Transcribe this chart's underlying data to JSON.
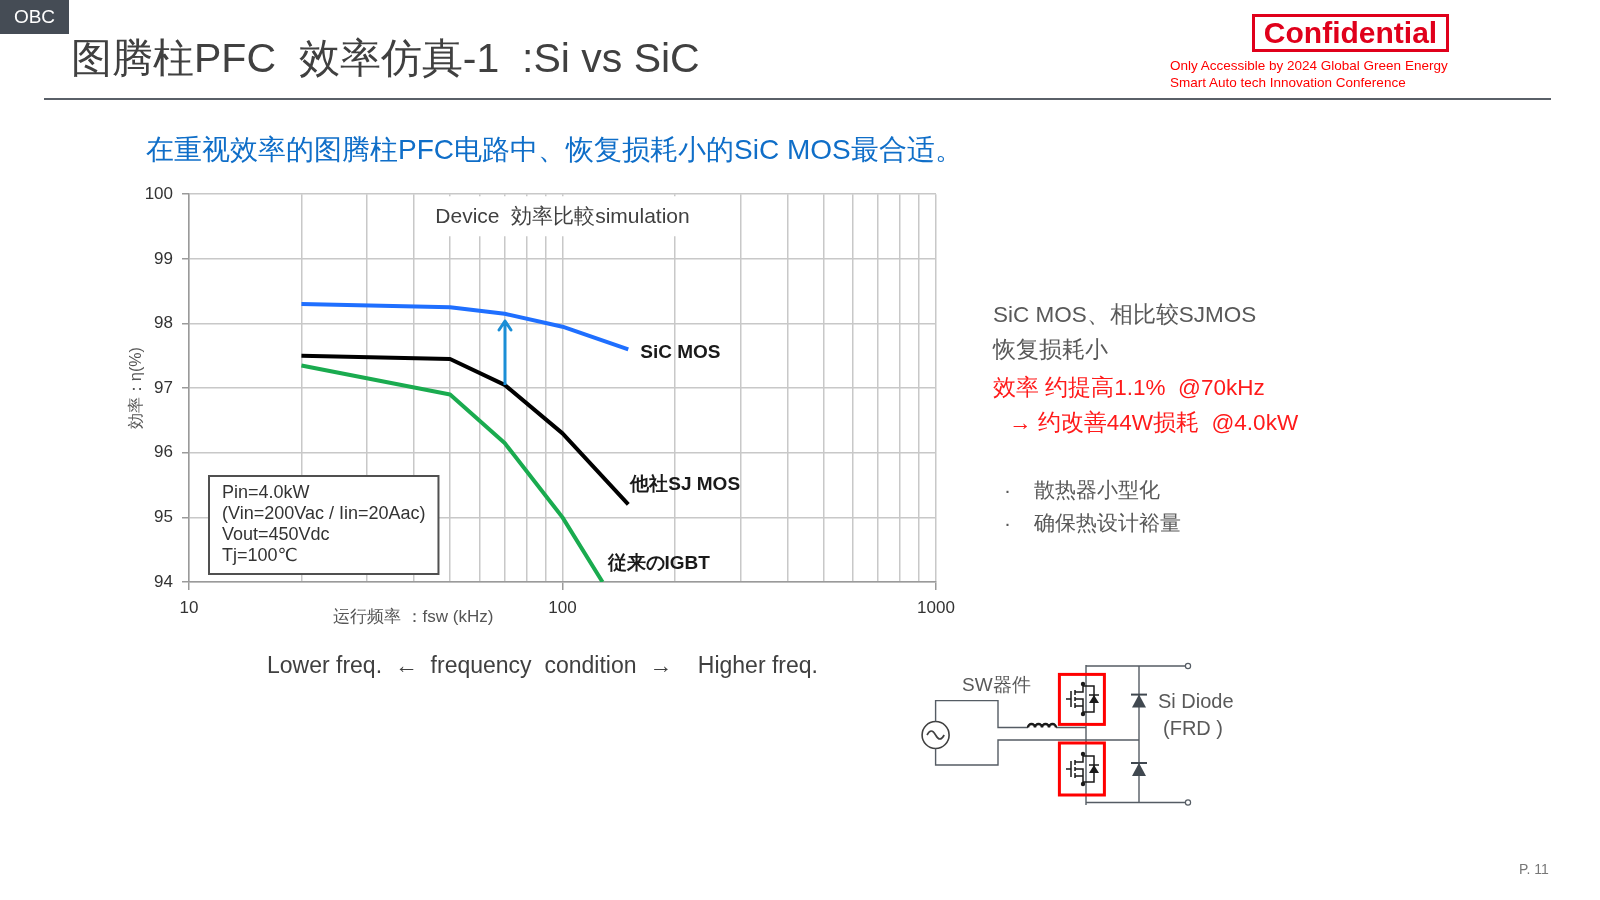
{
  "chart_data": {
    "type": "line",
    "title": "图腾柱PFC  效率仿真-1  :Si vs SiC",
    "subtitle": "在重视效率的图腾柱PFC电路中、恢复损耗小的SiC MOS最合适。",
    "xlabel": "运行频率 ：fsw (kHz)",
    "ylabel": "効率：η(%)",
    "log": "x",
    "x": [
      20,
      50,
      70,
      100,
      150
    ],
    "series": [
      {
        "name": "SiC MOS",
        "color": "#1f6fff",
        "values": [
          98.3,
          98.25,
          98.15,
          97.95,
          97.6
        ]
      },
      {
        "name": "他社SJ MOS",
        "color": "#000000",
        "values": [
          97.5,
          97.45,
          97.05,
          96.3,
          95.2
        ]
      },
      {
        "name": "従来のIGBT",
        "color": "#1aab4f",
        "x": [
          20,
          50,
          70,
          100,
          128
        ],
        "values": [
          97.35,
          96.9,
          96.15,
          95.0,
          94.0
        ]
      }
    ],
    "xlim": [
      10,
      1000
    ],
    "xticks": [
      10,
      {
        "value": 20,
        "label": null
      },
      {
        "value": 30,
        "label": null
      },
      {
        "value": 40,
        "label": null
      },
      {
        "value": 50,
        "label": null
      },
      {
        "value": 60,
        "label": null
      },
      {
        "value": 70,
        "label": null
      },
      {
        "value": 80,
        "label": null
      },
      {
        "value": 90,
        "label": null
      },
      100,
      {
        "value": 200,
        "label": null
      },
      {
        "value": 300,
        "label": null
      },
      {
        "value": 400,
        "label": null
      },
      {
        "value": 500,
        "label": null
      },
      {
        "value": 600,
        "label": null
      },
      {
        "value": 700,
        "label": null
      },
      {
        "value": 800,
        "label": null
      },
      {
        "value": 900,
        "label": null
      },
      1000
    ],
    "ylim": [
      94,
      100
    ],
    "yticks": [
      94,
      95,
      96,
      97,
      98,
      99,
      100
    ],
    "grid": true,
    "marker": "none",
    "line_style": "solid",
    "annotations": [
      "OBC",
      "Confidential",
      "Only Accessible by 2024 Global Green Energy\nSmart Auto tech Innovation Conference",
      "Device  効率比較simulation",
      "Pin=4.0kW\n(Vin=200Vac / Iin=20Aac)\nVout=450Vdc\nTj=100℃",
      "SiC MOS、相比较SJMOS\n恢复损耗小",
      "效率 约提高1.1%  @70kHz\n→ 约改善44W损耗  @4.0kW",
      "·    散热器小型化\n·    确保热设计裕量",
      "Lower freq.  ←  frequency  condition  →    Higher freq.",
      "SW器件",
      "Si Diode\n(FRD )",
      "P. 11"
    ]
  }
}
